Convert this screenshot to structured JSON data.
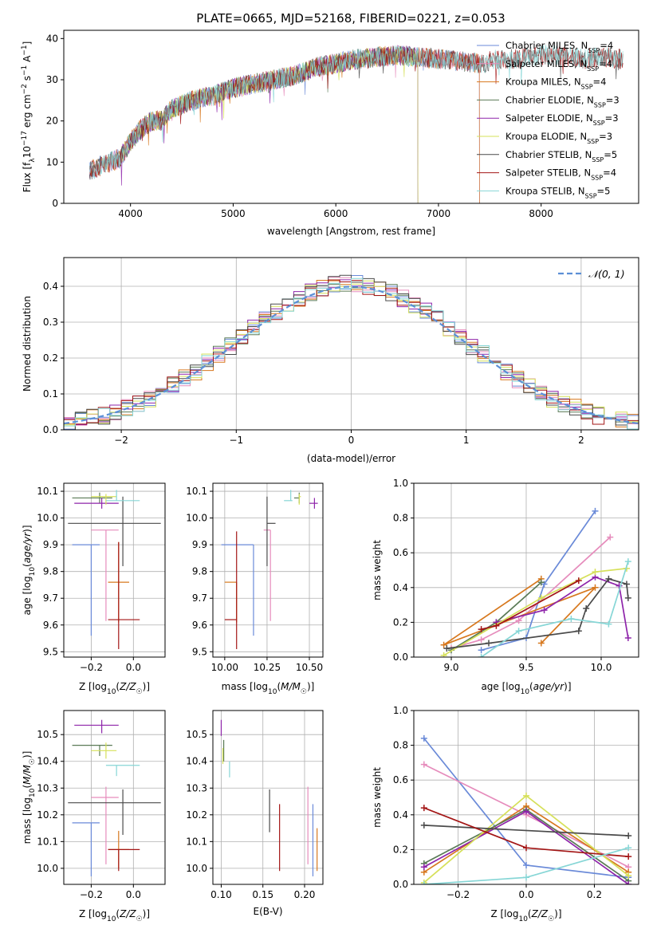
{
  "figure_title": "PLATE=0665, MJD=52168, FIBERID=0221, z=0.053",
  "colors": {
    "Chabrier MILES": "#6a8ad8",
    "Salpeter MILES": "#e68cbc",
    "Kroupa MILES": "#d7781e",
    "Chabrier ELODIE": "#5a7a56",
    "Salpeter ELODIE": "#8e24aa",
    "Kroupa ELODIE": "#d6e05a",
    "Chabrier STELIB": "#4a4a4a",
    "Salpeter STELIB": "#a31515",
    "Kroupa STELIB": "#86d6d6"
  },
  "chart_data": [
    {
      "id": "spectrum",
      "type": "line",
      "xlabel": "wavelength [Angstrom, rest frame]",
      "ylabel": "Flux [f_λ10^-17 erg cm^-2 s^-1 A^-1]",
      "xlim": [
        3350,
        8950
      ],
      "ylim": [
        0,
        42
      ],
      "xticks": [
        4000,
        5000,
        6000,
        7000,
        8000
      ],
      "yticks": [
        0,
        10,
        20,
        30,
        40
      ],
      "continuum": {
        "x": [
          3600,
          3700,
          3800,
          3900,
          4000,
          4100,
          4200,
          4300,
          4400,
          4500,
          4600,
          4800,
          5000,
          5200,
          5400,
          5600,
          5800,
          6000,
          6200,
          6400,
          6600,
          6800,
          7000,
          7200,
          7400,
          7600,
          7800,
          8000,
          8200,
          8400,
          8600,
          8800
        ],
        "y": [
          8,
          9,
          10,
          11,
          15,
          18,
          20,
          20,
          23,
          24,
          25,
          26,
          28,
          29,
          30,
          31,
          33,
          34,
          35,
          35.5,
          36,
          35.5,
          35,
          34.5,
          34,
          35,
          35,
          36,
          36,
          35,
          35.5,
          35
        ]
      },
      "series": [
        {
          "name": "Chabrier MILES",
          "n_ssp": "4",
          "x_range": [
            3600,
            7400
          ]
        },
        {
          "name": "Salpeter MILES",
          "n_ssp": "4",
          "x_range": [
            3600,
            7400
          ]
        },
        {
          "name": "Kroupa MILES",
          "n_ssp": "4",
          "x_range": [
            3600,
            7400
          ]
        },
        {
          "name": "Chabrier ELODIE",
          "n_ssp": "3",
          "x_range": [
            3900,
            6800
          ]
        },
        {
          "name": "Salpeter ELODIE",
          "n_ssp": "3",
          "x_range": [
            3900,
            6800
          ]
        },
        {
          "name": "Kroupa ELODIE",
          "n_ssp": "3",
          "x_range": [
            3900,
            6800
          ]
        },
        {
          "name": "Chabrier STELIB",
          "n_ssp": "5",
          "x_range": [
            3600,
            8800
          ]
        },
        {
          "name": "Salpeter STELIB",
          "n_ssp": "4",
          "x_range": [
            3600,
            8800
          ]
        },
        {
          "name": "Kroupa STELIB",
          "n_ssp": "5",
          "x_range": [
            3600,
            8800
          ]
        }
      ]
    },
    {
      "id": "residual-hist",
      "type": "histogram",
      "xlabel": "(data-model)/error",
      "ylabel": "Normed distribution",
      "xlim": [
        -2.5,
        2.5
      ],
      "ylim": [
        0,
        0.48
      ],
      "xticks": [
        -2,
        -1,
        0,
        1,
        2
      ],
      "yticks": [
        0.0,
        0.1,
        0.2,
        0.3,
        0.4
      ],
      "bin_width": 0.1,
      "reference": {
        "name": "𝒩(0, 1)",
        "mean": 0,
        "sigma": 1
      }
    },
    {
      "id": "age-vs-Z",
      "type": "errorbar",
      "xlabel": "Z [log10(Z/Z⊙)]",
      "ylabel": "age [log10(age/yr)]",
      "xlim": [
        -0.33,
        0.15
      ],
      "ylim": [
        9.48,
        10.13
      ],
      "xticks": [
        -0.2,
        0.0
      ],
      "yticks": [
        9.5,
        9.6,
        9.7,
        9.8,
        9.9,
        10.0,
        10.1
      ],
      "points": [
        {
          "name": "Chabrier MILES",
          "x": -0.2,
          "xerr": [
            0.09,
            0.04
          ],
          "y": 9.9,
          "yerr": [
            0.34,
            0.0
          ]
        },
        {
          "name": "Salpeter MILES",
          "x": -0.13,
          "xerr": [
            0.07,
            0.06
          ],
          "y": 9.955,
          "yerr": [
            0.34,
            0.0
          ]
        },
        {
          "name": "Kroupa MILES",
          "x": -0.07,
          "xerr": [
            0.05,
            0.05
          ],
          "y": 9.76,
          "yerr": [
            0.15,
            0.15
          ]
        },
        {
          "name": "Chabrier ELODIE",
          "x": -0.16,
          "xerr": [
            0.13,
            0.06
          ],
          "y": 10.075,
          "yerr": [
            0.02,
            0.02
          ]
        },
        {
          "name": "Salpeter ELODIE",
          "x": -0.15,
          "xerr": [
            0.13,
            0.08
          ],
          "y": 10.055,
          "yerr": [
            0.02,
            0.02
          ]
        },
        {
          "name": "Kroupa ELODIE",
          "x": -0.13,
          "xerr": [
            0.07,
            0.05
          ],
          "y": 10.08,
          "yerr": [
            0.03,
            0.01
          ]
        },
        {
          "name": "Chabrier STELIB",
          "x": -0.05,
          "xerr": [
            0.26,
            0.18
          ],
          "y": 9.98,
          "yerr": [
            0.16,
            0.1
          ]
        },
        {
          "name": "Salpeter STELIB",
          "x": -0.07,
          "xerr": [
            0.05,
            0.1
          ],
          "y": 9.62,
          "yerr": [
            0.11,
            0.29
          ]
        },
        {
          "name": "Kroupa STELIB",
          "x": -0.08,
          "xerr": [
            0.05,
            0.11
          ],
          "y": 10.065,
          "yerr": [
            0.0,
            0.04
          ]
        }
      ]
    },
    {
      "id": "age-vs-mass",
      "type": "errorbar",
      "xlabel": "mass [log10(M/M⊙)]",
      "ylabel": "",
      "xlim": [
        9.93,
        10.58
      ],
      "ylim": [
        9.48,
        10.13
      ],
      "xticks": [
        10.0,
        10.25,
        10.5
      ],
      "yticks": [
        9.5,
        9.6,
        9.7,
        9.8,
        9.9,
        10.0,
        10.1
      ],
      "points": [
        {
          "name": "Chabrier MILES",
          "x": 10.17,
          "xerr": [
            0.19,
            0.0
          ],
          "y": 9.9,
          "yerr": [
            0.34,
            0.0
          ]
        },
        {
          "name": "Salpeter MILES",
          "x": 10.27,
          "xerr": [
            0.04,
            0.0
          ],
          "y": 9.955,
          "yerr": [
            0.34,
            0.0
          ]
        },
        {
          "name": "Kroupa MILES",
          "x": 10.07,
          "xerr": [
            0.07,
            0.0
          ],
          "y": 9.76,
          "yerr": [
            0.15,
            0.0
          ]
        },
        {
          "name": "Chabrier ELODIE",
          "x": 10.44,
          "xerr": [
            0.03,
            0.0
          ],
          "y": 10.075,
          "yerr": [
            0.02,
            0.02
          ]
        },
        {
          "name": "Salpeter ELODIE",
          "x": 10.53,
          "xerr": [
            0.03,
            0.02
          ],
          "y": 10.055,
          "yerr": [
            0.02,
            0.02
          ]
        },
        {
          "name": "Kroupa ELODIE",
          "x": 10.44,
          "xerr": [
            0.0,
            0.01
          ],
          "y": 10.08,
          "yerr": [
            0.03,
            0.01
          ]
        },
        {
          "name": "Chabrier STELIB",
          "x": 10.25,
          "xerr": [
            0.0,
            0.05
          ],
          "y": 9.98,
          "yerr": [
            0.16,
            0.1
          ]
        },
        {
          "name": "Salpeter STELIB",
          "x": 10.07,
          "xerr": [
            0.07,
            0.0
          ],
          "y": 9.62,
          "yerr": [
            0.11,
            0.33
          ]
        },
        {
          "name": "Kroupa STELIB",
          "x": 10.39,
          "xerr": [
            0.04,
            0.01
          ],
          "y": 10.065,
          "yerr": [
            0.0,
            0.04
          ]
        }
      ]
    },
    {
      "id": "weight-vs-age",
      "type": "line",
      "xlabel": "age [log10(age/yr)]",
      "ylabel": "mass weight",
      "xlim": [
        8.75,
        10.25
      ],
      "ylim": [
        0,
        1
      ],
      "xticks": [
        9.0,
        9.5,
        10.0
      ],
      "yticks": [
        0.0,
        0.2,
        0.4,
        0.6,
        0.8,
        1.0
      ],
      "series": [
        {
          "name": "Chabrier MILES",
          "x": [
            9.2,
            9.5,
            9.62,
            9.96
          ],
          "y": [
            0.04,
            0.11,
            0.42,
            0.84
          ]
        },
        {
          "name": "Salpeter MILES",
          "x": [
            9.0,
            9.2,
            9.45,
            10.06
          ],
          "y": [
            0.05,
            0.1,
            0.21,
            0.69
          ]
        },
        {
          "name": "Kroupa MILES",
          "x": [
            9.6,
            9.96,
            8.95,
            9.6
          ],
          "y": [
            0.08,
            0.4,
            0.07,
            0.45
          ]
        },
        {
          "name": "Chabrier ELODIE",
          "x": [
            9.0,
            9.3,
            9.6
          ],
          "y": [
            0.04,
            0.2,
            0.43
          ]
        },
        {
          "name": "Salpeter ELODIE",
          "x": [
            9.3,
            9.62,
            9.96,
            10.12,
            10.18
          ],
          "y": [
            0.2,
            0.27,
            0.46,
            0.41,
            0.11
          ]
        },
        {
          "name": "Kroupa ELODIE",
          "x": [
            8.95,
            9.6,
            9.96,
            10.17
          ],
          "y": [
            0.01,
            0.34,
            0.49,
            0.51
          ]
        },
        {
          "name": "Chabrier STELIB",
          "x": [
            8.97,
            9.25,
            9.85,
            9.9,
            10.05,
            10.17,
            10.18
          ],
          "y": [
            0.05,
            0.08,
            0.15,
            0.28,
            0.45,
            0.42,
            0.34
          ]
        },
        {
          "name": "Salpeter STELIB",
          "x": [
            9.2,
            9.3,
            9.85
          ],
          "y": [
            0.16,
            0.18,
            0.44
          ]
        },
        {
          "name": "Kroupa STELIB",
          "x": [
            9.2,
            9.45,
            9.8,
            10.05,
            10.18
          ],
          "y": [
            0.0,
            0.15,
            0.22,
            0.19,
            0.55
          ]
        }
      ]
    },
    {
      "id": "mass-vs-Z",
      "type": "errorbar",
      "xlabel": "Z [log10(Z/Z⊙)]",
      "ylabel": "mass [log10(M/M⊙)]",
      "xlim": [
        -0.33,
        0.15
      ],
      "ylim": [
        9.94,
        10.59
      ],
      "xticks": [
        -0.2,
        0.0
      ],
      "yticks": [
        10.0,
        10.1,
        10.2,
        10.3,
        10.4,
        10.5
      ],
      "points": [
        {
          "name": "Chabrier MILES",
          "x": -0.2,
          "xerr": [
            0.09,
            0.04
          ],
          "y": 10.17,
          "yerr": [
            0.2,
            0.0
          ]
        },
        {
          "name": "Salpeter MILES",
          "x": -0.13,
          "xerr": [
            0.07,
            0.06
          ],
          "y": 10.265,
          "yerr": [
            0.25,
            0.04
          ]
        },
        {
          "name": "Kroupa MILES",
          "x": -0.07,
          "xerr": [
            0.05,
            0.05
          ],
          "y": 10.07,
          "yerr": [
            0.07,
            0.07
          ]
        },
        {
          "name": "Chabrier ELODIE",
          "x": -0.16,
          "xerr": [
            0.13,
            0.06
          ],
          "y": 10.46,
          "yerr": [
            0.04,
            0.0
          ]
        },
        {
          "name": "Salpeter ELODIE",
          "x": -0.15,
          "xerr": [
            0.13,
            0.08
          ],
          "y": 10.535,
          "yerr": [
            0.03,
            0.02
          ]
        },
        {
          "name": "Kroupa ELODIE",
          "x": -0.13,
          "xerr": [
            0.07,
            0.05
          ],
          "y": 10.44,
          "yerr": [
            0.03,
            0.03
          ]
        },
        {
          "name": "Chabrier STELIB",
          "x": -0.05,
          "xerr": [
            0.26,
            0.18
          ],
          "y": 10.245,
          "yerr": [
            0.12,
            0.05
          ]
        },
        {
          "name": "Salpeter STELIB",
          "x": -0.07,
          "xerr": [
            0.05,
            0.1
          ],
          "y": 10.07,
          "yerr": [
            0.08,
            0.0
          ]
        },
        {
          "name": "Kroupa STELIB",
          "x": -0.08,
          "xerr": [
            0.05,
            0.11
          ],
          "y": 10.385,
          "yerr": [
            0.04,
            0.0
          ]
        }
      ]
    },
    {
      "id": "mass-vs-ebv",
      "type": "errorbar",
      "xlabel": "E(B-V)",
      "ylabel": "",
      "xlim": [
        0.09,
        0.222
      ],
      "ylim": [
        9.94,
        10.59
      ],
      "xticks": [
        0.1,
        0.15,
        0.2
      ],
      "yticks": [
        10.0,
        10.1,
        10.2,
        10.3,
        10.4,
        10.5
      ],
      "points": [
        {
          "name": "Chabrier MILES",
          "x": 0.21,
          "y": 10.17,
          "yerr": [
            0.2,
            0.07
          ]
        },
        {
          "name": "Salpeter MILES",
          "x": 0.204,
          "y": 10.265,
          "yerr": [
            0.25,
            0.04
          ]
        },
        {
          "name": "Kroupa MILES",
          "x": 0.215,
          "y": 10.07,
          "yerr": [
            0.08,
            0.08
          ]
        },
        {
          "name": "Chabrier ELODIE",
          "x": 0.103,
          "y": 10.44,
          "yerr": [
            0.04,
            0.04
          ]
        },
        {
          "name": "Salpeter ELODIE",
          "x": 0.1,
          "y": 10.525,
          "yerr": [
            0.03,
            0.03
          ]
        },
        {
          "name": "Kroupa ELODIE",
          "x": 0.102,
          "y": 10.42,
          "yerr": [
            0.03,
            0.03
          ]
        },
        {
          "name": "Chabrier STELIB",
          "x": 0.158,
          "y": 10.215,
          "yerr": [
            0.08,
            0.08
          ]
        },
        {
          "name": "Salpeter STELIB",
          "x": 0.17,
          "y": 10.115,
          "yerr": [
            0.125,
            0.125
          ]
        },
        {
          "name": "Kroupa STELIB",
          "x": 0.11,
          "y": 10.37,
          "yerr": [
            0.03,
            0.03
          ]
        }
      ]
    },
    {
      "id": "weight-vs-Z",
      "type": "line",
      "xlabel": "Z [log10(Z/Z⊙)]",
      "ylabel": "mass weight",
      "xlim": [
        -0.33,
        0.33
      ],
      "ylim": [
        0,
        1
      ],
      "xticks": [
        -0.2,
        0.0,
        0.2
      ],
      "yticks": [
        0.0,
        0.2,
        0.4,
        0.6,
        0.8,
        1.0
      ],
      "series": [
        {
          "name": "Chabrier MILES",
          "x": [
            -0.3,
            0.0,
            0.3
          ],
          "y": [
            0.84,
            0.11,
            0.04
          ]
        },
        {
          "name": "Salpeter MILES",
          "x": [
            -0.3,
            0.0,
            0.3
          ],
          "y": [
            0.69,
            0.4,
            0.1
          ]
        },
        {
          "name": "Kroupa MILES",
          "x": [
            -0.3,
            0.0,
            0.3
          ],
          "y": [
            0.07,
            0.45,
            0.07
          ]
        },
        {
          "name": "Chabrier ELODIE",
          "x": [
            -0.3,
            0.0,
            0.3
          ],
          "y": [
            0.12,
            0.43,
            0.02
          ]
        },
        {
          "name": "Salpeter ELODIE",
          "x": [
            -0.3,
            0.0,
            0.3
          ],
          "y": [
            0.1,
            0.42,
            0.0
          ]
        },
        {
          "name": "Kroupa ELODIE",
          "x": [
            -0.3,
            0.0,
            0.3
          ],
          "y": [
            0.01,
            0.51,
            0.05
          ]
        },
        {
          "name": "Chabrier STELIB",
          "x": [
            -0.3,
            0.3
          ],
          "y": [
            0.34,
            0.28
          ]
        },
        {
          "name": "Salpeter STELIB",
          "x": [
            -0.3,
            0.0,
            0.3
          ],
          "y": [
            0.44,
            0.21,
            0.16
          ]
        },
        {
          "name": "Kroupa STELIB",
          "x": [
            -0.3,
            0.0,
            0.3
          ],
          "y": [
            0.0,
            0.04,
            0.21
          ]
        }
      ]
    }
  ]
}
